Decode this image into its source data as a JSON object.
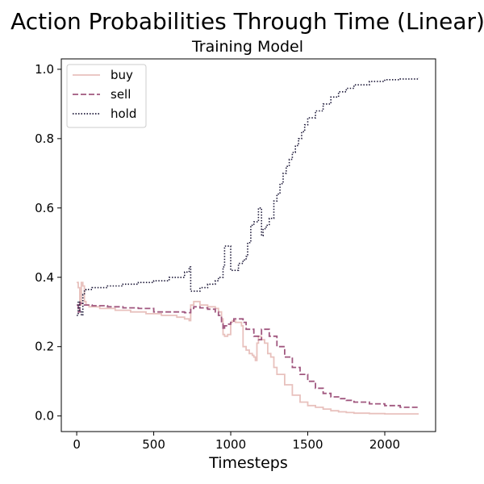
{
  "chart_data": {
    "type": "line",
    "title": "Action Probabilities Through Time (Linear)",
    "subtitle": "Training Model",
    "xlabel": "Timesteps",
    "ylabel": "",
    "xlim": [
      -100,
      2330
    ],
    "ylim": [
      -0.045,
      1.03
    ],
    "xticks": [
      0,
      500,
      1000,
      1500,
      2000
    ],
    "yticks": [
      0.0,
      0.2,
      0.4,
      0.6,
      0.8,
      1.0
    ],
    "xtick_labels": [
      "0",
      "500",
      "1000",
      "1500",
      "2000"
    ],
    "ytick_labels": [
      "0.0",
      "0.2",
      "0.4",
      "0.6",
      "0.8",
      "1.0"
    ],
    "grid": false,
    "legend_position": "top-left",
    "series": [
      {
        "name": "buy",
        "color": "#e8c1bd",
        "style": "solid",
        "x": [
          0,
          10,
          20,
          30,
          40,
          50,
          60,
          80,
          150,
          250,
          350,
          450,
          550,
          650,
          700,
          730,
          740,
          760,
          800,
          850,
          900,
          920,
          940,
          950,
          960,
          980,
          1000,
          1010,
          1030,
          1050,
          1070,
          1080,
          1100,
          1120,
          1140,
          1150,
          1160,
          1170,
          1180,
          1200,
          1220,
          1240,
          1260,
          1280,
          1300,
          1350,
          1400,
          1450,
          1500,
          1550,
          1600,
          1650,
          1700,
          1750,
          1800,
          1900,
          2000,
          2100,
          2220
        ],
        "y": [
          0.385,
          0.37,
          0.32,
          0.385,
          0.375,
          0.33,
          0.32,
          0.315,
          0.31,
          0.305,
          0.3,
          0.295,
          0.29,
          0.285,
          0.28,
          0.275,
          0.32,
          0.33,
          0.32,
          0.315,
          0.31,
          0.3,
          0.28,
          0.235,
          0.23,
          0.235,
          0.27,
          0.275,
          0.27,
          0.27,
          0.26,
          0.2,
          0.19,
          0.18,
          0.175,
          0.17,
          0.16,
          0.21,
          0.23,
          0.22,
          0.21,
          0.18,
          0.17,
          0.14,
          0.12,
          0.09,
          0.06,
          0.04,
          0.03,
          0.025,
          0.02,
          0.015,
          0.012,
          0.01,
          0.008,
          0.007,
          0.006,
          0.006,
          0.006
        ]
      },
      {
        "name": "sell",
        "color": "#a0577f",
        "style": "dashed",
        "x": [
          0,
          10,
          20,
          40,
          60,
          100,
          200,
          300,
          400,
          500,
          600,
          700,
          740,
          760,
          800,
          850,
          900,
          920,
          940,
          950,
          960,
          980,
          1000,
          1020,
          1050,
          1080,
          1100,
          1150,
          1180,
          1200,
          1250,
          1300,
          1350,
          1400,
          1450,
          1500,
          1550,
          1600,
          1650,
          1700,
          1750,
          1800,
          1900,
          2000,
          2100,
          2220
        ],
        "y": [
          0.32,
          0.3,
          0.325,
          0.32,
          0.32,
          0.318,
          0.315,
          0.312,
          0.31,
          0.3,
          0.3,
          0.298,
          0.31,
          0.315,
          0.312,
          0.308,
          0.3,
          0.29,
          0.27,
          0.25,
          0.26,
          0.265,
          0.27,
          0.28,
          0.28,
          0.27,
          0.25,
          0.23,
          0.22,
          0.25,
          0.23,
          0.2,
          0.17,
          0.14,
          0.12,
          0.1,
          0.08,
          0.065,
          0.055,
          0.05,
          0.045,
          0.04,
          0.035,
          0.03,
          0.025,
          0.022
        ]
      },
      {
        "name": "hold",
        "color": "#1e1a3a",
        "style": "dotted",
        "x": [
          0,
          10,
          20,
          30,
          40,
          50,
          60,
          100,
          200,
          300,
          400,
          500,
          600,
          700,
          730,
          740,
          760,
          800,
          850,
          900,
          920,
          950,
          960,
          980,
          1000,
          1020,
          1050,
          1080,
          1100,
          1110,
          1130,
          1150,
          1180,
          1200,
          1210,
          1230,
          1250,
          1280,
          1300,
          1320,
          1340,
          1360,
          1380,
          1400,
          1420,
          1440,
          1460,
          1480,
          1500,
          1550,
          1600,
          1650,
          1700,
          1750,
          1800,
          1900,
          2000,
          2100,
          2220
        ],
        "y": [
          0.29,
          0.33,
          0.3,
          0.29,
          0.35,
          0.36,
          0.365,
          0.37,
          0.375,
          0.38,
          0.385,
          0.39,
          0.4,
          0.415,
          0.43,
          0.36,
          0.36,
          0.37,
          0.38,
          0.39,
          0.4,
          0.43,
          0.49,
          0.49,
          0.42,
          0.42,
          0.44,
          0.45,
          0.46,
          0.5,
          0.55,
          0.56,
          0.6,
          0.52,
          0.54,
          0.55,
          0.57,
          0.62,
          0.64,
          0.67,
          0.7,
          0.72,
          0.74,
          0.76,
          0.78,
          0.8,
          0.82,
          0.84,
          0.86,
          0.88,
          0.9,
          0.92,
          0.935,
          0.945,
          0.955,
          0.965,
          0.97,
          0.972,
          0.975
        ]
      }
    ]
  }
}
